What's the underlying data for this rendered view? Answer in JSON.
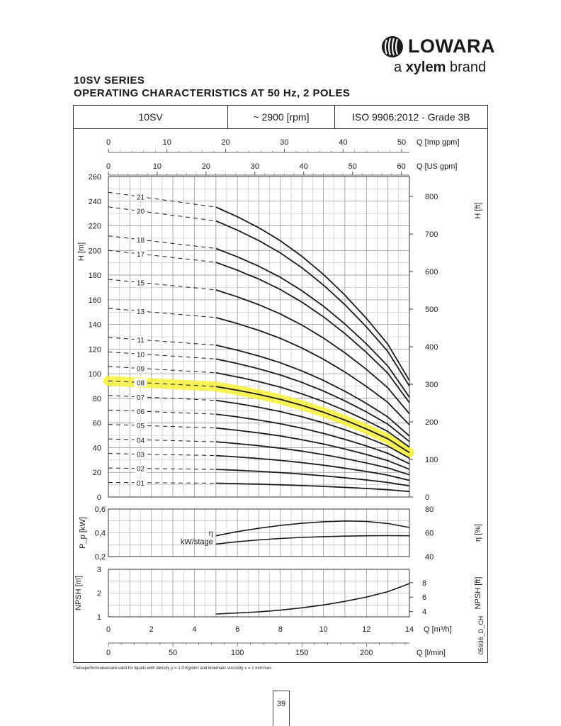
{
  "header": {
    "brand_name": "LOWARA",
    "tagline_prefix": "a",
    "tagline_brand": "xylem",
    "tagline_suffix": "brand",
    "title_line1": "10SV SERIES",
    "title_line2": "OPERATING CHARACTERISTICS AT 50 Hz, 2 POLES"
  },
  "spec_table": {
    "model": "10SV",
    "speed": "~ 2900 [rpm]",
    "standard": "ISO 9906:2012 - Grade 3B"
  },
  "footnote": "Theseperformancesare valid for liquids with density ρ = 1.0 Kg/dm³ and kinematic viscosity ν = 1 mm²/sec.",
  "page_number": "39",
  "colors": {
    "curve": "#1a1a1a",
    "grid": "#999999",
    "highlight": "#f6f03a"
  },
  "chart_data": [
    {
      "type": "line",
      "x_unit": "Q [m³/h]",
      "xlim": [
        0,
        14
      ],
      "y_unit": "H [m]",
      "ylim": [
        0,
        260
      ],
      "yticks": [
        0,
        20,
        40,
        60,
        80,
        100,
        120,
        140,
        160,
        180,
        200,
        220,
        240,
        260
      ],
      "secondary_y_unit": "H [ft]",
      "secondary_yticks": [
        0,
        100,
        200,
        300,
        400,
        500,
        600,
        700,
        800
      ],
      "top_axes": [
        {
          "unit": "Q [Imp gpm]",
          "ticks": [
            0,
            10,
            20,
            30,
            40,
            50
          ]
        },
        {
          "unit": "Q [US gpm]",
          "ticks": [
            0,
            10,
            20,
            30,
            40,
            50,
            60
          ]
        }
      ],
      "grid": true,
      "highlighted_series": "08",
      "series_x": [
        0,
        5,
        6,
        7,
        8,
        9,
        10,
        11,
        12,
        13,
        14
      ],
      "series": [
        {
          "name": "01",
          "values": [
            11.8,
            11.2,
            10.8,
            10.4,
            9.9,
            9.3,
            8.6,
            7.8,
            6.9,
            5.9,
            4.5
          ]
        },
        {
          "name": "02",
          "values": [
            23.5,
            22.4,
            21.7,
            20.8,
            19.8,
            18.6,
            17.2,
            15.6,
            13.8,
            11.8,
            9.0
          ]
        },
        {
          "name": "03",
          "values": [
            35.3,
            33.6,
            32.5,
            31.2,
            29.7,
            27.9,
            25.8,
            23.4,
            20.7,
            17.7,
            13.5
          ]
        },
        {
          "name": "04",
          "values": [
            47.1,
            44.8,
            43.3,
            41.6,
            39.6,
            37.2,
            34.4,
            31.2,
            27.6,
            23.6,
            18.0
          ]
        },
        {
          "name": "05",
          "values": [
            58.9,
            56.0,
            54.1,
            52.0,
            49.5,
            46.5,
            43.0,
            39.0,
            34.5,
            29.5,
            22.5
          ]
        },
        {
          "name": "06",
          "values": [
            70.6,
            67.2,
            65.0,
            62.4,
            59.4,
            55.8,
            51.6,
            46.8,
            41.4,
            35.4,
            27.0
          ]
        },
        {
          "name": "07",
          "values": [
            82.4,
            78.4,
            75.8,
            72.8,
            69.3,
            65.1,
            60.2,
            54.6,
            48.3,
            41.3,
            31.5
          ]
        },
        {
          "name": "08",
          "values": [
            94.2,
            89.6,
            86.6,
            83.2,
            79.2,
            74.4,
            68.8,
            62.4,
            55.2,
            47.2,
            36.0
          ]
        },
        {
          "name": "09",
          "values": [
            105.9,
            100.8,
            97.4,
            93.6,
            89.1,
            83.7,
            77.4,
            70.2,
            62.1,
            53.1,
            40.5
          ]
        },
        {
          "name": "10",
          "values": [
            117.7,
            112.0,
            108.3,
            104.0,
            99.0,
            93.0,
            86.0,
            78.0,
            69.0,
            59.0,
            45.0
          ]
        },
        {
          "name": "11",
          "values": [
            129.5,
            123.2,
            119.1,
            114.4,
            108.9,
            102.3,
            94.6,
            85.8,
            75.9,
            64.9,
            49.5
          ]
        },
        {
          "name": "13",
          "values": [
            153.0,
            145.6,
            140.7,
            135.2,
            128.7,
            120.9,
            111.8,
            101.4,
            89.7,
            76.7,
            58.5
          ]
        },
        {
          "name": "15",
          "values": [
            176.6,
            168.0,
            162.4,
            156.0,
            148.5,
            139.5,
            129.0,
            117.0,
            103.5,
            88.5,
            67.5
          ]
        },
        {
          "name": "17",
          "values": [
            200.1,
            190.4,
            184.0,
            176.8,
            168.3,
            158.1,
            146.2,
            132.6,
            117.3,
            100.3,
            76.5
          ]
        },
        {
          "name": "18",
          "values": [
            211.9,
            201.6,
            194.9,
            187.2,
            178.2,
            167.4,
            154.8,
            140.4,
            124.2,
            106.2,
            81.0
          ]
        },
        {
          "name": "20",
          "values": [
            235.4,
            224.0,
            216.5,
            208.0,
            198.0,
            186.0,
            172.0,
            156.0,
            138.0,
            118.0,
            90.0
          ]
        },
        {
          "name": "21",
          "values": [
            247.2,
            235.2,
            227.4,
            218.4,
            207.9,
            195.3,
            180.6,
            163.8,
            144.9,
            123.9,
            94.5
          ]
        }
      ]
    },
    {
      "type": "line",
      "y_unit": "P_p [kW]",
      "ylim": [
        0.2,
        0.6
      ],
      "yticks": [
        0.2,
        0.4,
        0.6
      ],
      "ytick_labels": [
        "0,2",
        "0,4",
        "0,6"
      ],
      "secondary_y_unit": "η [%]",
      "secondary_ylim": [
        40,
        80
      ],
      "secondary_yticks": [
        40,
        60,
        80
      ],
      "xlim": [
        0,
        14
      ],
      "series": [
        {
          "name": "η",
          "axis": "secondary",
          "x": [
            5,
            6,
            7,
            8,
            9,
            10,
            11,
            12,
            13,
            14
          ],
          "values": [
            57.5,
            61.0,
            63.8,
            66.2,
            68.0,
            69.3,
            70.0,
            69.6,
            67.8,
            64.5
          ]
        },
        {
          "name": "kW/stage",
          "axis": "primary",
          "x": [
            5,
            6,
            7,
            8,
            9,
            10,
            11,
            12,
            13,
            14
          ],
          "values": [
            0.305,
            0.325,
            0.34,
            0.352,
            0.361,
            0.368,
            0.372,
            0.375,
            0.376,
            0.375
          ]
        }
      ]
    },
    {
      "type": "line",
      "y_unit": "NPSH [m]",
      "ylim": [
        1,
        3
      ],
      "yticks": [
        1,
        2,
        3
      ],
      "secondary_y_unit": "NPSH [ft]",
      "secondary_yticks": [
        4,
        6,
        8
      ],
      "x_unit": "Q [m³/h]",
      "xlim": [
        0,
        14
      ],
      "xticks": [
        0,
        2,
        4,
        6,
        8,
        10,
        12,
        14
      ],
      "bottom_axis": {
        "unit": "Q [l/min]",
        "ticks": [
          0,
          50,
          100,
          150,
          200
        ]
      },
      "series": [
        {
          "name": "NPSH",
          "x": [
            5,
            6,
            7,
            8,
            9,
            10,
            11,
            12,
            13,
            14
          ],
          "values": [
            1.12,
            1.16,
            1.21,
            1.28,
            1.38,
            1.5,
            1.65,
            1.83,
            2.06,
            2.4
          ]
        }
      ]
    }
  ],
  "code": "05936_D_CH"
}
